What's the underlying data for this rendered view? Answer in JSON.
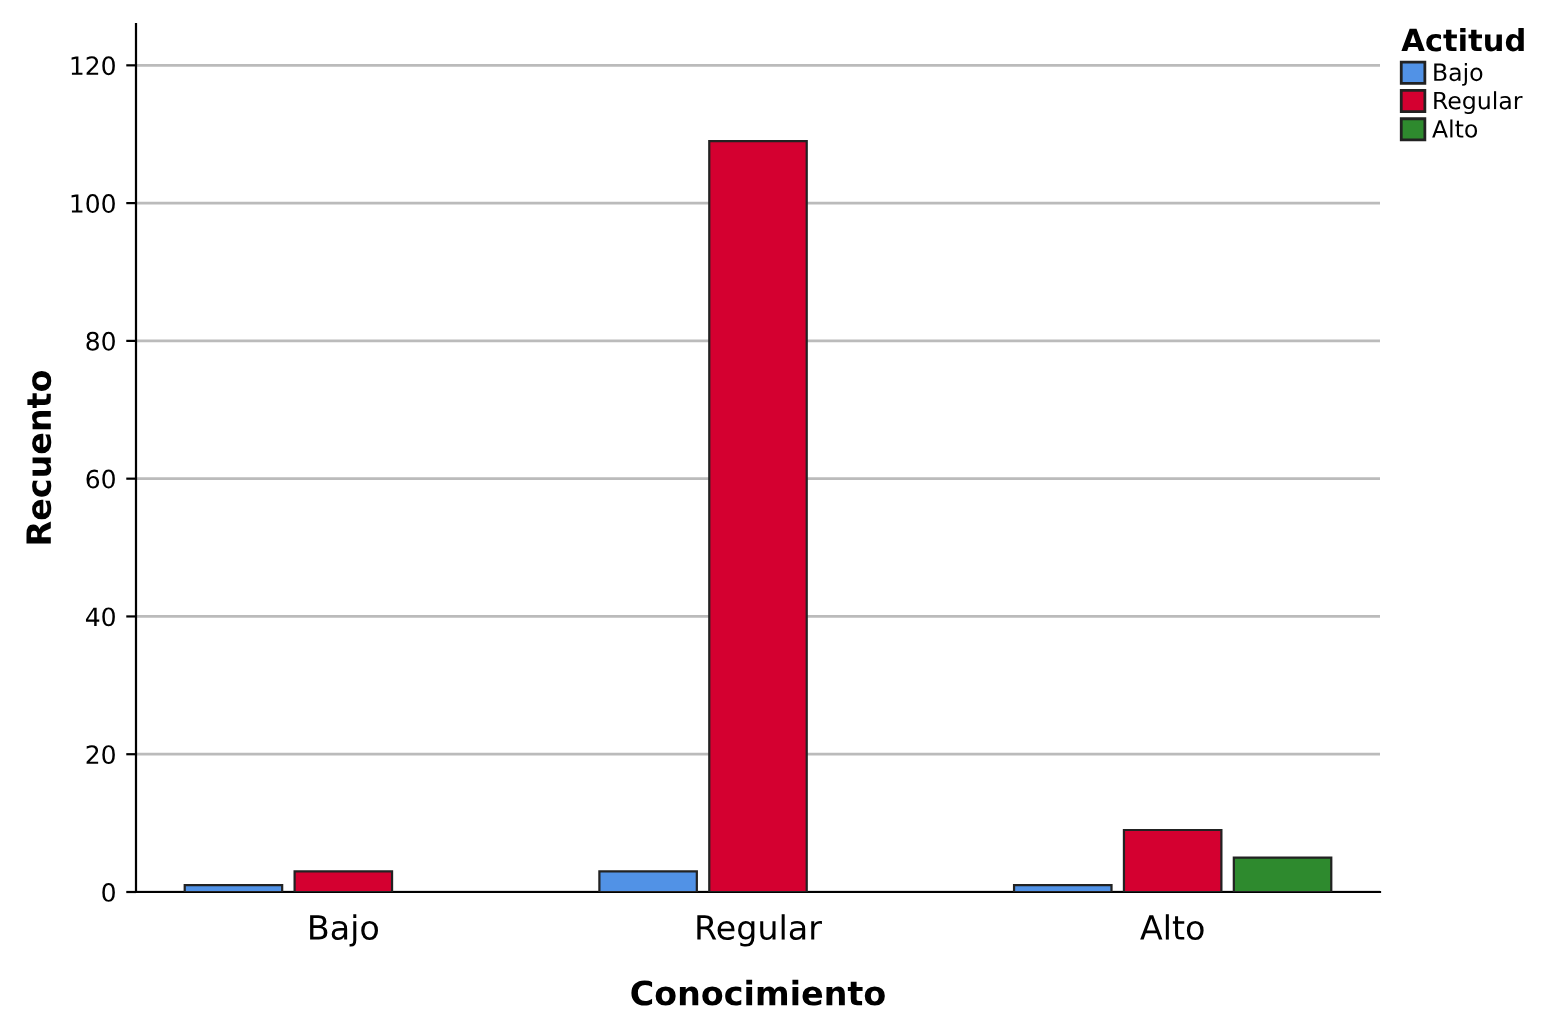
{
  "chart_data": {
    "type": "bar",
    "xlabel": "Conocimiento",
    "ylabel": "Recuento",
    "legend_title": "Actitud",
    "categories": [
      "Bajo",
      "Regular",
      "Alto"
    ],
    "series": [
      {
        "name": "Bajo",
        "color": "#5192e6",
        "values": [
          1,
          3,
          1
        ]
      },
      {
        "name": "Regular",
        "color": "#d40030",
        "values": [
          3,
          109,
          9
        ]
      },
      {
        "name": "Alto",
        "color": "#2e8a2e",
        "values": [
          null,
          null,
          5
        ]
      }
    ],
    "ylim": [
      0,
      126
    ],
    "yticks": [
      0,
      20,
      40,
      60,
      80,
      100,
      120
    ],
    "grid": "y",
    "legend": "top right"
  }
}
